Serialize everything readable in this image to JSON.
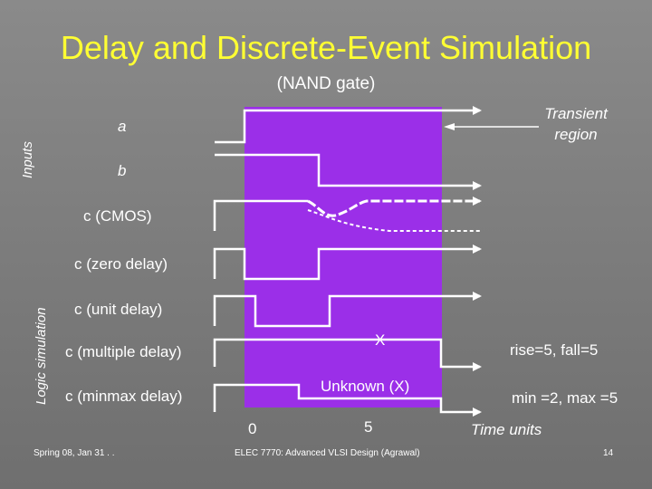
{
  "slide": {
    "title": "Delay and Discrete-Event Simulation",
    "subtitle": "(NAND gate)",
    "axis_inputs": "Inputs",
    "axis_logic": "Logic simulation",
    "transient_label_line1": "Transient",
    "transient_label_line2": "region",
    "signals": {
      "a": "a",
      "b": "b",
      "c_cmos": "c  (CMOS)",
      "c_zero": "c  (zero delay)",
      "c_unit": "c  (unit delay)",
      "c_multiple": "c  (multiple delay)",
      "c_minmax": "c  (minmax delay)"
    },
    "x_label": "X",
    "unknown_label": "Unknown (X)",
    "rise_fall": "rise=5, fall=5",
    "min_max": "min =2, max =5",
    "tick_0": "0",
    "tick_5": "5",
    "time_units": "Time units",
    "footer_left": "Spring 08, Jan 31 . .",
    "footer_center": "ELEC 7770: Advanced VLSI Design (Agrawal)",
    "page_number": "14"
  },
  "colors": {
    "background": "#7d7d7d",
    "title": "#ffff33",
    "transient_region": "#9b2fe8",
    "waveform": "#ffffff"
  }
}
